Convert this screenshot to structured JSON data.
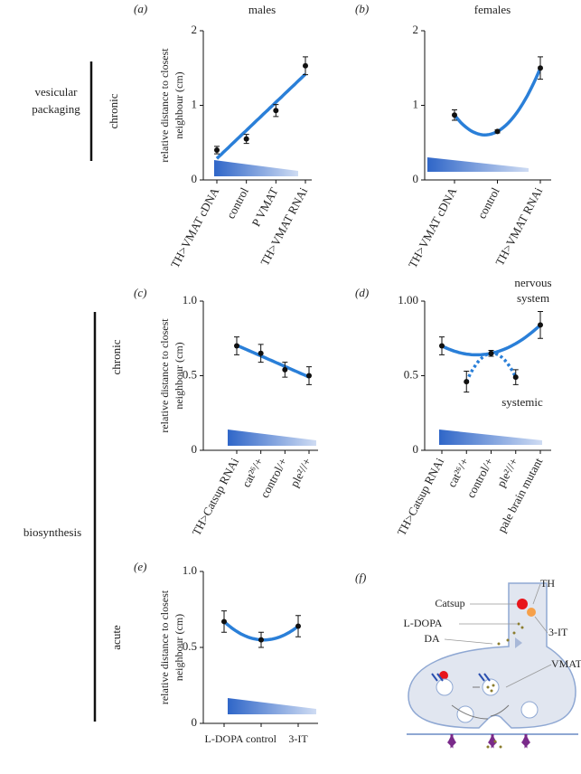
{
  "figure": {
    "panels": [
      "(a)",
      "(b)",
      "(c)",
      "(d)",
      "(e)",
      "(f)"
    ],
    "group1": [
      "vesicular",
      "packaging"
    ],
    "group1_time": "chronic",
    "group2": "biosynthesis",
    "group2_time1": "chronic",
    "group2_time2": "acute",
    "diagram": {
      "catsup": "Catsup",
      "th": "TH",
      "ldopa": "L-DOPA",
      "it": "3-IT",
      "da": "DA",
      "vmat": "VMAT"
    }
  },
  "chart_data": [
    {
      "type": "scatter",
      "title": "males",
      "ylabel": [
        "relative distance to closest",
        "neighbour (cm)"
      ],
      "categories": [
        "TH>VMAT cDNA",
        "control",
        "P VMAT",
        "TH>VMAT RNAi"
      ],
      "values": [
        0.4,
        0.55,
        0.93,
        1.53
      ],
      "errors": [
        0.05,
        0.06,
        0.08,
        0.12
      ],
      "ylim": [
        0,
        2
      ],
      "yticks": [
        0,
        1,
        2
      ],
      "fits": [
        {
          "points": [
            0,
            1,
            2,
            3
          ],
          "kind": "linear",
          "style": "solid"
        }
      ],
      "color": "#2a7fd8"
    },
    {
      "type": "scatter",
      "title": "females",
      "categories": [
        "TH>VMAT cDNA",
        "control",
        "TH>VMAT RNAi"
      ],
      "values": [
        0.87,
        0.65,
        1.5
      ],
      "errors": [
        0.07,
        0.02,
        0.15
      ],
      "ylim": [
        0,
        2
      ],
      "yticks": [
        0,
        1,
        2
      ],
      "fits": [
        {
          "points": [
            0,
            1,
            2
          ],
          "kind": "quadratic",
          "style": "solid"
        }
      ],
      "color": "#2a7fd8"
    },
    {
      "type": "scatter",
      "ylabel": [
        "relative distance to closest",
        "neighbour (cm)"
      ],
      "categories": [
        "TH>Catsup RNAi",
        "cat²⁶/+",
        "control/+",
        "ple²//+"
      ],
      "values": [
        0.7,
        0.65,
        0.54,
        0.5
      ],
      "errors": [
        0.06,
        0.06,
        0.05,
        0.06
      ],
      "ylim": [
        0,
        1
      ],
      "yticks": [
        0,
        0.5,
        {
          "value": 1,
          "label": "1.0"
        }
      ],
      "fits": [
        {
          "points": [
            0,
            1,
            2,
            3
          ],
          "kind": "linear",
          "style": "solid"
        }
      ],
      "color": "#2a7fd8"
    },
    {
      "type": "scatter",
      "annotations": [
        "nervous",
        "system",
        "systemic"
      ],
      "categories": [
        "TH>Catsup RNAi",
        "cat²⁶/+",
        "control/+",
        "ple²//+",
        "pale brain mutant"
      ],
      "values": [
        0.7,
        0.46,
        0.65,
        0.49,
        0.84
      ],
      "errors": [
        0.06,
        0.07,
        0.02,
        0.05,
        0.09
      ],
      "ylim": [
        0,
        1
      ],
      "yticks": [
        0,
        0.5,
        {
          "value": 1,
          "label": "1.00"
        }
      ],
      "fits": [
        {
          "points": [
            0,
            2,
            4
          ],
          "kind": "quadratic",
          "style": "solid"
        },
        {
          "points": [
            1,
            2,
            3
          ],
          "kind": "quadratic",
          "style": "dotted"
        }
      ],
      "color": "#2a7fd8"
    },
    {
      "type": "scatter",
      "ylabel": [
        "relative distance to closest",
        "neighbour (cm)"
      ],
      "categories": [
        "L-DOPA",
        "control",
        "3-IT"
      ],
      "values": [
        0.67,
        0.55,
        0.64
      ],
      "errors": [
        0.07,
        0.05,
        0.07
      ],
      "ylim": [
        0,
        1
      ],
      "yticks": [
        0,
        0.5,
        {
          "value": 1,
          "label": "1.0"
        }
      ],
      "fits": [
        {
          "points": [
            0,
            1,
            2
          ],
          "kind": "quadratic",
          "style": "solid"
        }
      ],
      "color": "#2a7fd8"
    }
  ]
}
